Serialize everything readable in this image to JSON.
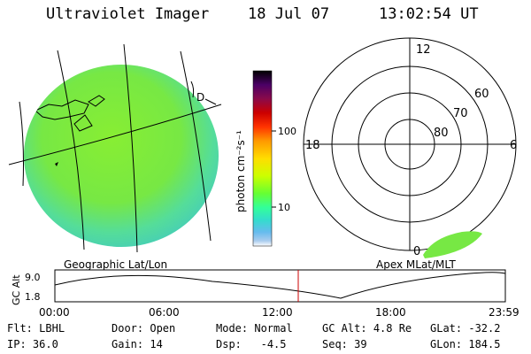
{
  "header": {
    "instrument": "Ultraviolet Imager",
    "date": "18 Jul 07",
    "time": "13:02:54 UT"
  },
  "geo_panel": {
    "label": "Geographic Lat/Lon",
    "limb_marker": "D"
  },
  "colorbar": {
    "unit_label": "photon cm⁻²s⁻¹",
    "ticks": [
      "100",
      "10"
    ],
    "colors": [
      "#000000",
      "#4b0066",
      "#8a0a4a",
      "#cc0000",
      "#ff3300",
      "#ff9900",
      "#ffdd00",
      "#ccff00",
      "#66ff33",
      "#33ff99",
      "#33ddcc",
      "#66bbee",
      "#aaccee",
      "#ffffff"
    ]
  },
  "polar_panel": {
    "label": "Apex MLat/MLT",
    "hour_labels": {
      "top": "12",
      "left": "18",
      "right": "6",
      "bottom": "0"
    },
    "lat_labels": [
      "60",
      "70",
      "80"
    ]
  },
  "altitude_plot": {
    "ylabel": "GC Alt",
    "yticks": [
      "9.0",
      "1.8"
    ],
    "xticks": [
      "00:00",
      "06:00",
      "12:00",
      "18:00",
      "23:59"
    ],
    "current_time_marker": "13:02:54",
    "marker_color": "#cc0000"
  },
  "info": {
    "row1": [
      {
        "label": "Flt:",
        "value": "LBHL"
      },
      {
        "label": "Door:",
        "value": "Open"
      },
      {
        "label": "Mode:",
        "value": "Normal"
      },
      {
        "label": "GC Alt:",
        "value": "4.8 Re"
      },
      {
        "label": "GLat:",
        "value": "-32.2"
      }
    ],
    "row2": [
      {
        "label": "IP:",
        "value": "36.0"
      },
      {
        "label": "Gain:",
        "value": "14"
      },
      {
        "label": "Dsp:",
        "value": "-4.5"
      },
      {
        "label": "Seq:",
        "value": "39"
      },
      {
        "label": "GLon:",
        "value": "184.5"
      }
    ]
  }
}
